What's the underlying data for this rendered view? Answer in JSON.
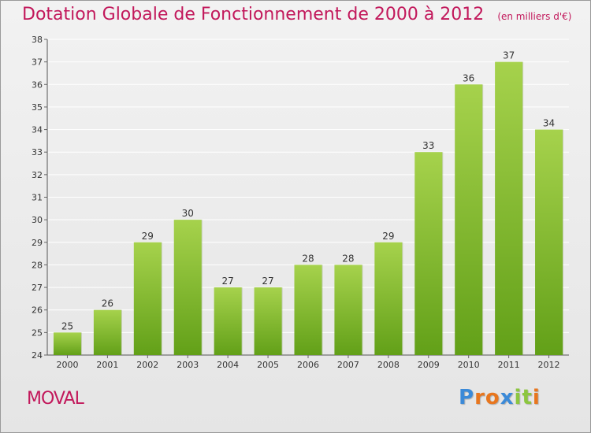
{
  "header": {
    "title": "Dotation Globale de Fonctionnement de 2000 à 2012",
    "subtitle": "(en milliers d'€)"
  },
  "footer": {
    "place": "MOVAL",
    "logo_letters": [
      "P",
      "r",
      "o",
      "x",
      "i",
      "t",
      "i"
    ],
    "logo_colors": [
      "#3b8ad8",
      "#e8761e",
      "#e8761e",
      "#3b8ad8",
      "#8cc63f",
      "#8cc63f",
      "#e8761e"
    ]
  },
  "colors": {
    "bar_light": "#a6d24c",
    "bar_dark": "#62a018",
    "grid": "#ffffff",
    "axis_text": "#333333",
    "accent": "#c2185b"
  },
  "chart_data": {
    "type": "bar",
    "categories": [
      "2000",
      "2001",
      "2002",
      "2003",
      "2004",
      "2005",
      "2006",
      "2007",
      "2008",
      "2009",
      "2010",
      "2011",
      "2012"
    ],
    "values": [
      25,
      26,
      29,
      30,
      27,
      27,
      28,
      28,
      29,
      33,
      36,
      37,
      34
    ],
    "data_labels": [
      "25",
      "26",
      "29",
      "30",
      "27",
      "27",
      "28",
      "28",
      "29",
      "33",
      "36",
      "37",
      "34"
    ],
    "yticks": [
      24,
      25,
      26,
      27,
      28,
      29,
      30,
      31,
      32,
      33,
      34,
      35,
      36,
      37,
      38
    ],
    "ylim": [
      24,
      38
    ],
    "grid": true,
    "legend": "none"
  }
}
